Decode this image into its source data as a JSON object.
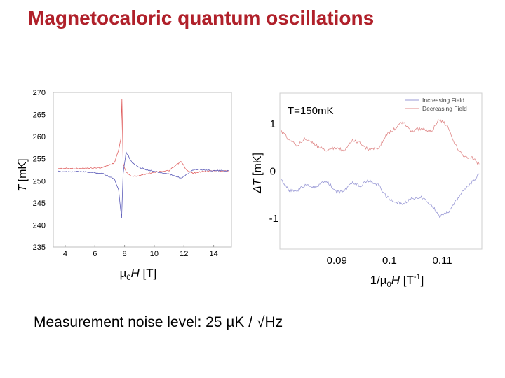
{
  "slide": {
    "title": "Magnetocaloric quantum oscillations",
    "noise_note": "Measurement noise level: 25 µK / √Hz"
  },
  "chart_data": [
    {
      "type": "line",
      "ylabel": "T [mK]",
      "xlabel": "µ0H [T]",
      "xticks": [
        4,
        6,
        8,
        10,
        12,
        14
      ],
      "yticks": [
        235,
        240,
        245,
        250,
        255,
        260,
        265,
        270
      ],
      "xlim": [
        3.2,
        15.2
      ],
      "ylim": [
        235,
        270
      ],
      "grid": false,
      "legend": "none",
      "series": [
        {
          "color": "#e06060",
          "x": [
            3.5,
            5,
            6.5,
            7.3,
            7.6,
            7.75,
            7.82,
            7.9,
            8.1,
            8.5,
            9,
            10,
            11,
            11.8,
            12.2,
            12.6,
            13,
            14,
            15
          ],
          "y": [
            252.8,
            252.8,
            253.0,
            254.0,
            257.0,
            259.5,
            268.5,
            254,
            252,
            251,
            251.2,
            252,
            252.3,
            254.4,
            252.3,
            251.7,
            252.0,
            252.3,
            252.3
          ]
        },
        {
          "color": "#5a5ab8",
          "x": [
            3.5,
            5,
            6.5,
            7.3,
            7.6,
            7.72,
            7.8,
            7.9,
            8.1,
            8.5,
            9,
            10,
            11,
            11.8,
            12.2,
            12.6,
            13,
            14,
            15
          ],
          "y": [
            252.1,
            252.1,
            251.7,
            250.5,
            248.0,
            244.0,
            241.5,
            251.5,
            256.5,
            254.2,
            253.0,
            252.1,
            251.5,
            250.6,
            251.5,
            252.5,
            252.6,
            252.3,
            252.3
          ]
        }
      ]
    },
    {
      "type": "line",
      "ylabel": "ΔT [mK]",
      "xlabel": "1/µ0H [T-1]",
      "annotation": "T=150mK",
      "xticks": [
        0.09,
        0.1,
        0.11
      ],
      "yticks": [
        1,
        0,
        -1
      ],
      "xlim": [
        0.0792,
        0.1175
      ],
      "ylim": [
        -1.65,
        1.65
      ],
      "grid": false,
      "legend": "top-right",
      "series": [
        {
          "name": "Increasing Field",
          "color": "#9a9ad6",
          "x": [
            0.0795,
            0.081,
            0.0825,
            0.084,
            0.086,
            0.088,
            0.09,
            0.0915,
            0.093,
            0.0945,
            0.096,
            0.098,
            0.0995,
            0.101,
            0.1025,
            0.104,
            0.106,
            0.108,
            0.1095,
            0.111,
            0.1125,
            0.114,
            0.1155,
            0.117
          ],
          "y": [
            -0.2,
            -0.4,
            -0.4,
            -0.3,
            -0.35,
            -0.2,
            -0.45,
            -0.4,
            -0.25,
            -0.3,
            -0.2,
            -0.3,
            -0.55,
            -0.65,
            -0.7,
            -0.58,
            -0.55,
            -0.72,
            -0.95,
            -0.88,
            -0.65,
            -0.4,
            -0.25,
            -0.05
          ]
        },
        {
          "name": "Decreasing Field",
          "color": "#e08a8a",
          "x": [
            0.0795,
            0.081,
            0.0825,
            0.084,
            0.086,
            0.088,
            0.09,
            0.0915,
            0.093,
            0.0945,
            0.096,
            0.098,
            0.0995,
            0.101,
            0.1025,
            0.104,
            0.106,
            0.108,
            0.1095,
            0.111,
            0.1125,
            0.114,
            0.1155,
            0.117
          ],
          "y": [
            0.85,
            0.65,
            0.55,
            0.7,
            0.55,
            0.45,
            0.5,
            0.42,
            0.65,
            0.6,
            0.45,
            0.5,
            0.78,
            0.9,
            1.05,
            0.85,
            0.9,
            0.85,
            1.1,
            0.95,
            0.55,
            0.3,
            0.3,
            0.15
          ]
        }
      ]
    }
  ]
}
